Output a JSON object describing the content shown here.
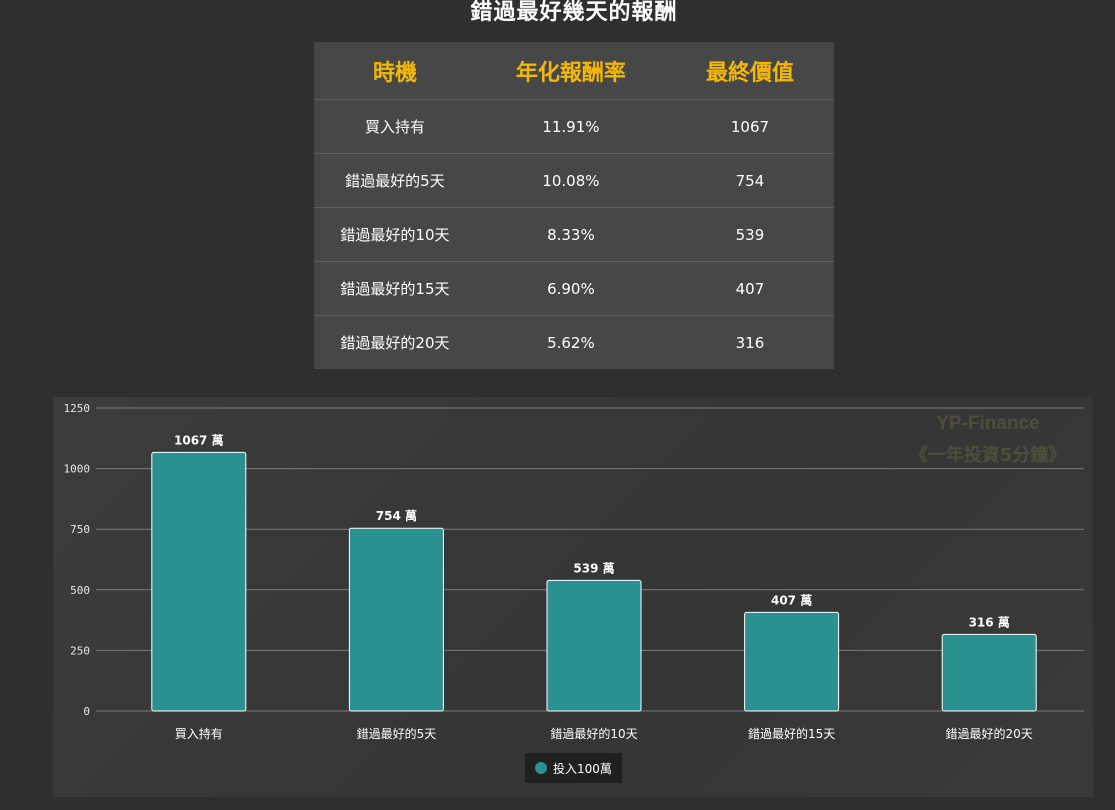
{
  "page": {
    "title": "錯過最好幾天的報酬"
  },
  "table": {
    "headers": [
      "時機",
      "年化報酬率",
      "最終價值"
    ],
    "rows": [
      [
        "買入持有",
        "11.91%",
        "1067"
      ],
      [
        "錯過最好的5天",
        "10.08%",
        "754"
      ],
      [
        "錯過最好的10天",
        "8.33%",
        "539"
      ],
      [
        "錯過最好的15天",
        "6.90%",
        "407"
      ],
      [
        "錯過最好的20天",
        "5.62%",
        "316"
      ]
    ]
  },
  "watermark": {
    "line1": "YP-Finance",
    "line2": "《一年投資5分鐘》"
  },
  "colors": {
    "background": "#2f2f2f",
    "header_text": "#f5b800",
    "bar": "#2a9090",
    "bar_stroke": "#ffffff"
  },
  "chart_data": {
    "type": "bar",
    "categories": [
      "買入持有",
      "錯過最好的5天",
      "錯過最好的10天",
      "錯過最好的15天",
      "錯過最好的20天"
    ],
    "series": [
      {
        "name": "投入100萬",
        "values": [
          1067,
          754,
          539,
          407,
          316
        ],
        "labels": [
          "1067 萬",
          "754 萬",
          "539 萬",
          "407 萬",
          "316 萬"
        ]
      }
    ],
    "yticks": [
      "0",
      "250",
      "500",
      "750",
      "1000",
      "1250"
    ],
    "ylim": [
      0,
      1250
    ],
    "grid": true,
    "legend": "bottom-center"
  }
}
